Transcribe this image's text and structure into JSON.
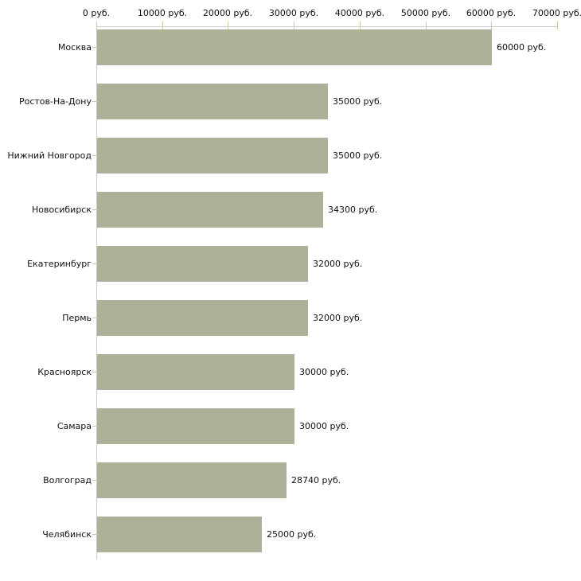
{
  "chart_data": {
    "type": "bar",
    "orientation": "horizontal",
    "title": "",
    "xlabel": "",
    "ylabel": "",
    "categories": [
      "Москва",
      "Ростов-На-Дону",
      "Нижний Новгород",
      "Новосибирск",
      "Екатеринбург",
      "Пермь",
      "Красноярск",
      "Самара",
      "Волгоград",
      "Челябинск"
    ],
    "values": [
      60000,
      35000,
      35000,
      34300,
      32000,
      32000,
      30000,
      30000,
      28740,
      25000
    ],
    "value_labels": [
      "60000 руб.",
      "35000 руб.",
      "35000 руб.",
      "34300 руб.",
      "32000 руб.",
      "32000 руб.",
      "30000 руб.",
      "30000 руб.",
      "28740 руб.",
      "25000 руб."
    ],
    "x_ticks": [
      0,
      10000,
      20000,
      30000,
      40000,
      50000,
      60000,
      70000
    ],
    "x_tick_labels": [
      "0 руб.",
      "10000 руб.",
      "20000 руб.",
      "30000 руб.",
      "40000 руб.",
      "50000 руб.",
      "60000 руб.",
      "70000 руб."
    ],
    "xlim": [
      0,
      70000
    ],
    "grid": false,
    "legend": "none",
    "colors": {
      "bar": "#adb199",
      "axis_line": "#cccccc",
      "tick": "#c9c9a3",
      "text": "#111111",
      "background": "#ffffff"
    }
  }
}
